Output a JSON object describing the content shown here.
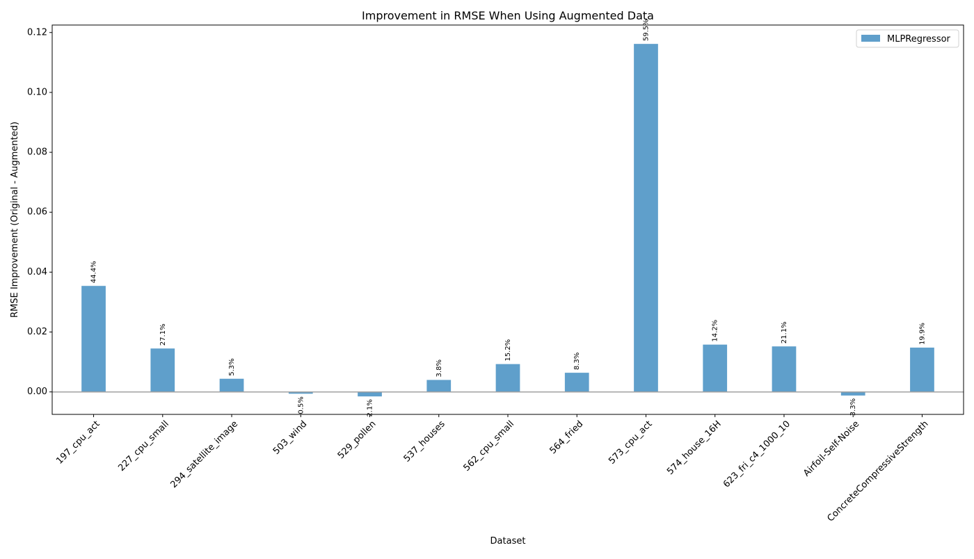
{
  "chart_data": {
    "type": "bar",
    "title": "Improvement in RMSE When Using Augmented Data",
    "xlabel": "Dataset",
    "ylabel": "RMSE Improvement (Original - Augmented)",
    "categories": [
      "197_cpu_act",
      "227_cpu_small",
      "294_satellite_image",
      "503_wind",
      "529_pollen",
      "537_houses",
      "562_cpu_small",
      "564_fried",
      "573_cpu_act",
      "574_house_16H",
      "623_fri_c4_1000_10",
      "Airfoil-Self-Noise",
      "ConcreteCompressiveStrength"
    ],
    "series": [
      {
        "name": "MLPRegressor",
        "color": "#5f9fcb",
        "values": [
          0.0354,
          0.0145,
          0.0044,
          -0.0006,
          -0.0015,
          0.004,
          0.0093,
          0.0064,
          0.1162,
          0.0158,
          0.0152,
          -0.0012,
          0.0148
        ],
        "labels": [
          "44.4%",
          "27.1%",
          "5.3%",
          "0.5%",
          "2.1%",
          "3.8%",
          "15.2%",
          "8.3%",
          "59.5%",
          "14.2%",
          "21.1%",
          "3.3%",
          "19.9%"
        ]
      }
    ],
    "ylim": [
      -0.0075,
      0.1225
    ],
    "yticks": [
      0.0,
      0.02,
      0.04,
      0.06,
      0.08,
      0.1,
      0.12
    ],
    "ytick_labels": [
      "0.00",
      "0.02",
      "0.04",
      "0.06",
      "0.08",
      "0.10",
      "0.12"
    ],
    "zero_line": true,
    "grid": false,
    "legend": "top-right"
  }
}
